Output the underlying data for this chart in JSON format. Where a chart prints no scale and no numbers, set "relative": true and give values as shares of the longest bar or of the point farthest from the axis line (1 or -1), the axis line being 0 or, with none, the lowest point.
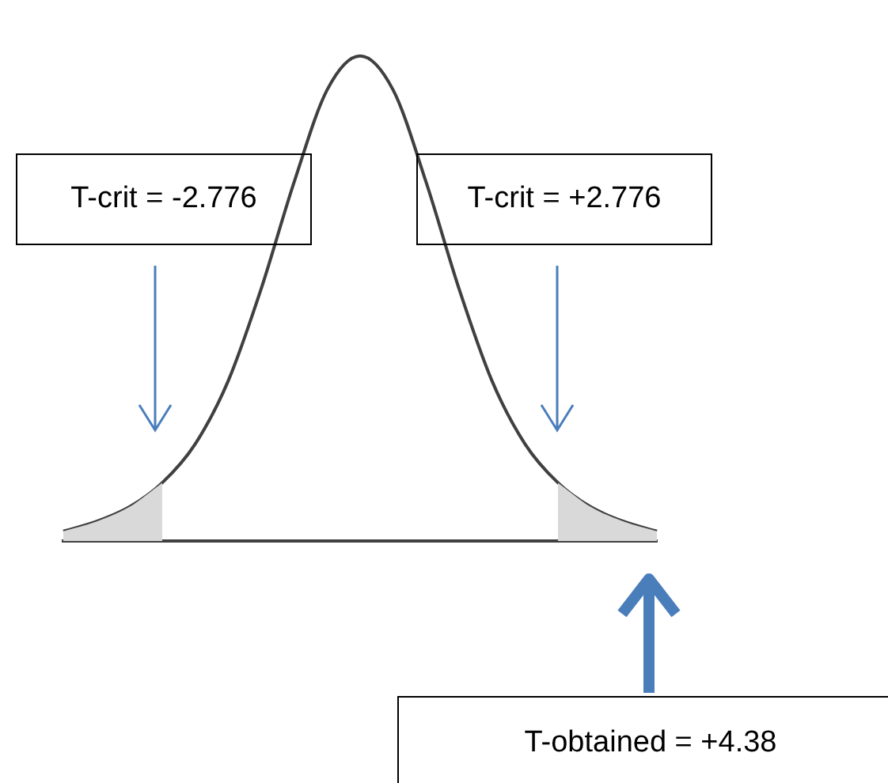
{
  "chart_data": {
    "type": "line",
    "relative": true,
    "legend": false,
    "grid": false,
    "tick_labels": false,
    "marker": "none",
    "categories": [
      null,
      null,
      null,
      null,
      null,
      null,
      null,
      null,
      null,
      null,
      null,
      null,
      null,
      null,
      null,
      null,
      null,
      null,
      null
    ],
    "series": [
      {
        "type": "area",
        "color": "#d9d9d9",
        "values": [
          0.02,
          0.04,
          0.07,
          0.12,
          null,
          null,
          null,
          null,
          null,
          null,
          null,
          null,
          null,
          null,
          null,
          0.12,
          0.07,
          0.04,
          0.02
        ]
      },
      {
        "type": "line",
        "color": "#404040",
        "values": [
          0.02,
          0.04,
          0.07,
          0.12,
          0.2,
          0.33,
          0.52,
          0.74,
          0.93,
          1,
          0.93,
          0.74,
          0.52,
          0.33,
          0.2,
          0.12,
          0.07,
          0.04,
          0.02
        ]
      }
    ],
    "annotations": [
      "T-crit = -2.776",
      "T-crit = +2.776",
      "T-obtained = +4.38"
    ]
  }
}
